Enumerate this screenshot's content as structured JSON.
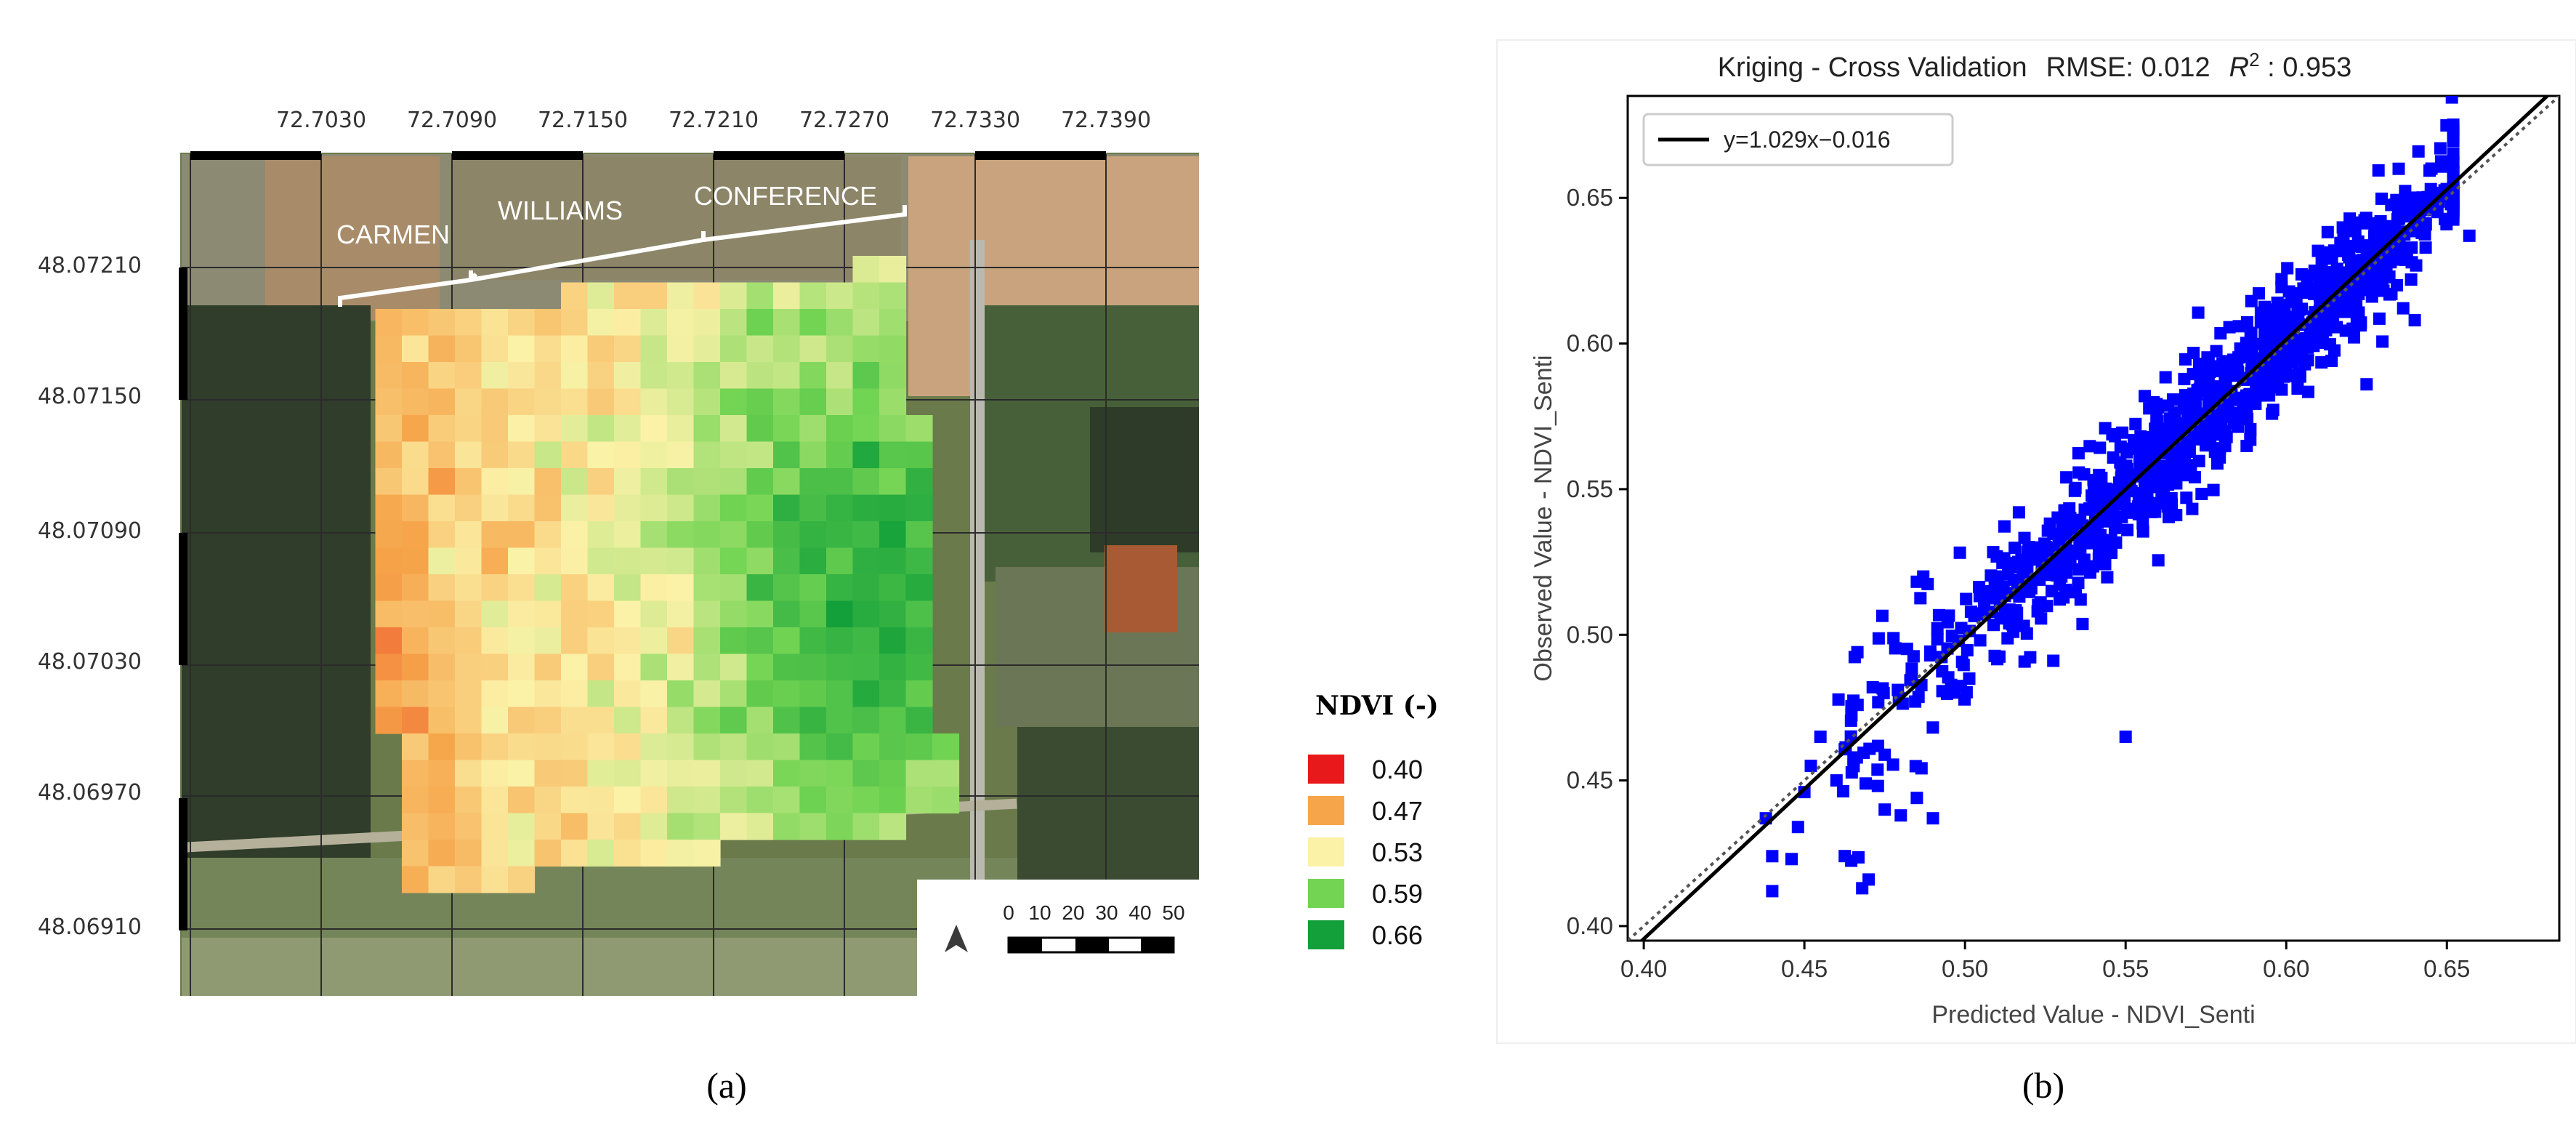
{
  "panel_a": {
    "caption": "(a)",
    "lon_ticks": [
      "72.7030",
      "72.7090",
      "72.7150",
      "72.7210",
      "72.7270",
      "72.7330",
      "72.7390"
    ],
    "lat_ticks": [
      "48.07210",
      "48.07150",
      "48.07090",
      "48.07030",
      "48.06970",
      "48.06910"
    ],
    "field_labels": [
      "CARMEN",
      "WILLIAMS",
      "CONFERENCE"
    ],
    "legend": {
      "title": "NDVI (-)",
      "items": [
        {
          "label": "0.40",
          "color": "#e8191a"
        },
        {
          "label": "0.47",
          "color": "#f6a54a"
        },
        {
          "label": "0.53",
          "color": "#fbf2a8"
        },
        {
          "label": "0.59",
          "color": "#72d452"
        },
        {
          "label": "0.66",
          "color": "#13a03a"
        }
      ]
    },
    "scale_bar": {
      "labels": [
        "0",
        "10",
        "20",
        "30",
        "40",
        "50"
      ]
    },
    "north_arrow": "north-arrow-icon"
  },
  "panel_b": {
    "caption": "(b)",
    "title": {
      "main": "Kriging - Cross Validation",
      "rmse": "RMSE: 0.012",
      "r2_symbol": "R",
      "r2_exp": "2",
      "r2_value": " : 0.953"
    },
    "legend_label": "y=1.029x−0.016",
    "colors": {
      "points": "#0000ff",
      "fit": "#000000",
      "identity": "#666666"
    }
  },
  "chart_data": {
    "type": "scatter",
    "title": "Kriging - Cross Validation   RMSE: 0.012   R^2 : 0.953",
    "xlabel": "Predicted Value - NDVI_Senti",
    "ylabel": "Observed Value - NDVI_Senti",
    "xlim": [
      0.395,
      0.685
    ],
    "ylim": [
      0.395,
      0.685
    ],
    "xticks": [
      "0.40",
      "0.45",
      "0.50",
      "0.55",
      "0.60",
      "0.65"
    ],
    "yticks": [
      "0.40",
      "0.45",
      "0.50",
      "0.55",
      "0.60",
      "0.65"
    ],
    "fit": {
      "slope": 1.029,
      "intercept": -0.016,
      "label": "y=1.029x−0.016"
    },
    "identity_line": true,
    "n_points": 1100,
    "sample_points": [
      [
        0.438,
        0.437
      ],
      [
        0.44,
        0.412
      ],
      [
        0.44,
        0.424
      ],
      [
        0.446,
        0.423
      ],
      [
        0.448,
        0.434
      ],
      [
        0.45,
        0.446
      ],
      [
        0.452,
        0.455
      ],
      [
        0.455,
        0.465
      ],
      [
        0.46,
        0.45
      ],
      [
        0.468,
        0.413
      ],
      [
        0.47,
        0.416
      ],
      [
        0.475,
        0.44
      ],
      [
        0.48,
        0.438
      ],
      [
        0.485,
        0.444
      ],
      [
        0.49,
        0.437
      ],
      [
        0.487,
        0.52
      ],
      [
        0.55,
        0.465
      ],
      [
        0.51,
        0.52
      ],
      [
        0.53,
        0.52
      ],
      [
        0.54,
        0.545
      ],
      [
        0.56,
        0.555
      ],
      [
        0.58,
        0.575
      ],
      [
        0.6,
        0.6
      ],
      [
        0.62,
        0.62
      ],
      [
        0.625,
        0.586
      ],
      [
        0.63,
        0.64
      ],
      [
        0.64,
        0.645
      ],
      [
        0.645,
        0.653
      ],
      [
        0.648,
        0.667
      ],
      [
        0.635,
        0.66
      ],
      [
        0.657,
        0.637
      ],
      [
        0.64,
        0.608
      ]
    ]
  }
}
